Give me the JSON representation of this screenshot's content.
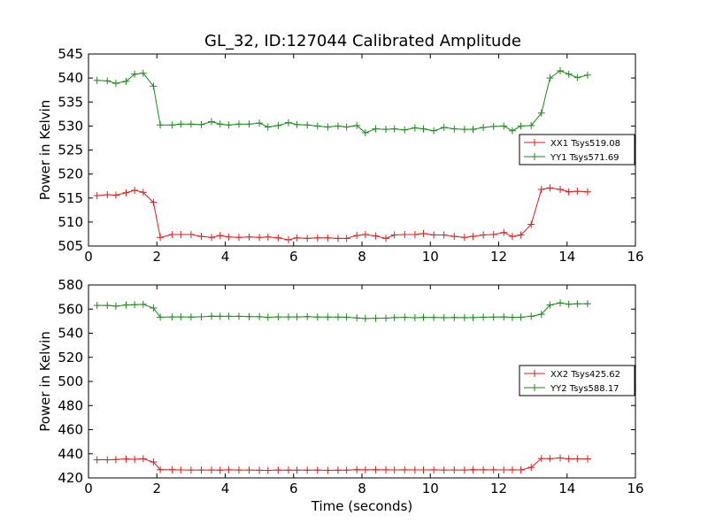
{
  "title": "GL_32, ID:127044 Calibrated Amplitude",
  "chart_data": [
    {
      "type": "line",
      "ylabel": "Power in Kelvin",
      "xlabel": "",
      "xlim": [
        0,
        16
      ],
      "ylim": [
        505,
        545
      ],
      "xticks": [
        0,
        2,
        4,
        6,
        8,
        10,
        12,
        14,
        16
      ],
      "yticks": [
        505,
        510,
        515,
        520,
        525,
        530,
        535,
        540,
        545
      ],
      "grid": false,
      "legend": "center-right",
      "x": [
        0.25,
        0.55,
        0.8,
        1.1,
        1.35,
        1.6,
        1.9,
        2.1,
        2.45,
        2.7,
        3.0,
        3.3,
        3.6,
        3.85,
        4.1,
        4.4,
        4.7,
        5.0,
        5.25,
        5.55,
        5.85,
        6.1,
        6.4,
        6.7,
        7.0,
        7.3,
        7.55,
        7.85,
        8.1,
        8.4,
        8.7,
        8.95,
        9.25,
        9.55,
        9.8,
        10.1,
        10.4,
        10.7,
        11.0,
        11.25,
        11.55,
        11.85,
        12.15,
        12.4,
        12.65,
        12.95,
        13.25,
        13.5,
        13.8,
        14.05,
        14.3,
        14.6
      ],
      "series": [
        {
          "name": "XX1 Tsys519.08",
          "color": "#e41a1c",
          "values": [
            515.5,
            515.7,
            515.6,
            516.1,
            516.6,
            516.2,
            514.1,
            506.8,
            507.4,
            507.4,
            507.4,
            507.0,
            506.8,
            507.2,
            506.9,
            506.8,
            506.9,
            506.8,
            506.9,
            506.7,
            506.3,
            506.7,
            506.6,
            506.7,
            506.7,
            506.6,
            506.6,
            507.2,
            507.4,
            507.1,
            506.6,
            507.3,
            507.4,
            507.4,
            507.6,
            507.3,
            507.3,
            507.0,
            506.8,
            507.0,
            507.3,
            507.4,
            507.8,
            507.0,
            507.3,
            509.5,
            516.8,
            517.1,
            516.8,
            516.3,
            516.4,
            516.3
          ]
        },
        {
          "name": "YY1 Tsys571.69",
          "color": "#1a8a1a",
          "values": [
            539.5,
            539.4,
            538.9,
            539.3,
            540.8,
            541.0,
            538.3,
            530.2,
            530.2,
            530.4,
            530.4,
            530.3,
            530.9,
            530.4,
            530.2,
            530.4,
            530.4,
            530.6,
            529.8,
            530.1,
            530.7,
            530.3,
            530.2,
            530.0,
            529.8,
            530.0,
            529.8,
            530.1,
            528.6,
            529.4,
            529.3,
            529.4,
            529.2,
            529.6,
            529.4,
            529.0,
            529.7,
            529.4,
            529.3,
            529.3,
            529.7,
            529.9,
            530.0,
            529.0,
            530.0,
            530.1,
            532.7,
            540.0,
            541.5,
            540.8,
            540.1,
            540.6
          ]
        }
      ]
    },
    {
      "type": "line",
      "ylabel": "Power in Kelvin",
      "xlabel": "Time (seconds)",
      "xlim": [
        0,
        16
      ],
      "ylim": [
        420,
        580
      ],
      "xticks": [
        0,
        2,
        4,
        6,
        8,
        10,
        12,
        14,
        16
      ],
      "yticks": [
        420,
        440,
        460,
        480,
        500,
        520,
        540,
        560,
        580
      ],
      "grid": false,
      "legend": "center-right",
      "x": [
        0.25,
        0.55,
        0.8,
        1.1,
        1.35,
        1.6,
        1.9,
        2.1,
        2.45,
        2.7,
        3.0,
        3.3,
        3.6,
        3.85,
        4.1,
        4.4,
        4.7,
        5.0,
        5.25,
        5.55,
        5.85,
        6.1,
        6.4,
        6.7,
        7.0,
        7.3,
        7.55,
        7.85,
        8.1,
        8.4,
        8.7,
        8.95,
        9.25,
        9.55,
        9.8,
        10.1,
        10.4,
        10.7,
        11.0,
        11.25,
        11.55,
        11.85,
        12.15,
        12.4,
        12.65,
        12.95,
        13.25,
        13.5,
        13.8,
        14.05,
        14.3,
        14.6
      ],
      "series": [
        {
          "name": "XX2 Tsys425.62",
          "color": "#e41a1c",
          "values": [
            435.0,
            435.0,
            435.2,
            435.7,
            435.4,
            435.9,
            433.2,
            426.8,
            426.8,
            426.6,
            426.5,
            426.5,
            426.5,
            426.4,
            426.7,
            426.5,
            426.5,
            426.3,
            426.2,
            426.5,
            426.4,
            426.4,
            426.4,
            426.5,
            426.2,
            426.4,
            426.4,
            426.8,
            426.7,
            426.8,
            426.7,
            426.6,
            426.7,
            426.6,
            426.6,
            426.7,
            426.5,
            426.6,
            426.5,
            426.8,
            426.7,
            426.7,
            426.6,
            426.7,
            426.6,
            428.7,
            436.1,
            436.0,
            436.5,
            435.8,
            435.8,
            435.8
          ]
        },
        {
          "name": "YY2 Tsys588.17",
          "color": "#1a8a1a",
          "values": [
            563.0,
            563.0,
            562.5,
            563.4,
            563.7,
            563.9,
            560.9,
            553.3,
            553.5,
            553.5,
            553.4,
            553.6,
            554.1,
            554.0,
            554.0,
            554.0,
            553.8,
            553.7,
            553.2,
            553.5,
            553.5,
            553.5,
            553.8,
            553.4,
            553.4,
            553.4,
            553.3,
            552.7,
            552.2,
            552.4,
            552.5,
            552.9,
            553.2,
            552.8,
            553.1,
            553.0,
            552.9,
            553.0,
            552.9,
            552.9,
            553.3,
            553.4,
            553.5,
            553.1,
            553.3,
            554.0,
            555.7,
            563.4,
            565.1,
            564.0,
            564.4,
            564.4
          ]
        }
      ]
    }
  ]
}
